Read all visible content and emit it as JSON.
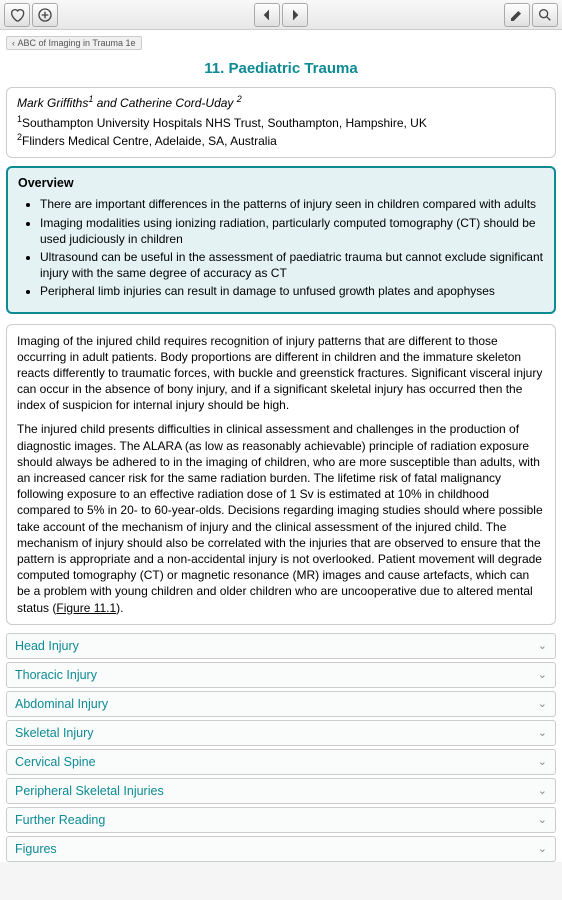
{
  "breadcrumb": {
    "back_label": "ABC of Imaging in Trauma 1e"
  },
  "title": "11. Paediatric Trauma",
  "authors_html": "Mark Griffiths",
  "authors_sup1": "1",
  "authors_and": " and Catherine Cord-Uday ",
  "authors_sup2": "2",
  "affil1_sup": "1",
  "affil1": "Southampton University Hospitals NHS Trust, Southampton, Hampshire, UK",
  "affil2_sup": "2",
  "affil2": "Flinders Medical Centre, Adelaide, SA, Australia",
  "overview": {
    "heading": "Overview",
    "items": [
      "There are important differences in the patterns of injury seen in children compared with adults",
      "Imaging modalities using ionizing radiation, particularly computed tomography (CT) should be used judiciously in children",
      "Ultrasound can be useful in the assessment of paediatric trauma but cannot exclude significant injury with the same degree of accuracy as CT",
      "Peripheral limb injuries can result in damage to unfused growth plates and apophyses"
    ]
  },
  "body": {
    "p1": "Imaging of the injured child requires recognition of injury patterns that are different to those occurring in adult patients. Body proportions are different in children and the immature skeleton reacts differently to traumatic forces, with buckle and greenstick fractures. Significant visceral injury can occur in the absence of bony injury, and if a significant skeletal injury has occurred then the index of suspicion for internal injury should be high.",
    "p2a": "The injured child presents difficulties in clinical assessment and challenges in the production of diagnostic images. The ALARA (as low as reasonably achievable) principle of radiation exposure should always be adhered to in the imaging of children, who are more susceptible than adults, with an increased cancer risk for the same radiation burden. The lifetime risk of fatal malignancy following exposure to an effective radiation dose of 1 Sv is estimated at 10% in childhood compared to 5% in 20- to 60-year-olds. Decisions regarding imaging studies should where possible take account of the mechanism of injury and the clinical assessment of the injured child. The mechanism of injury should also be correlated with the injuries that are observed to ensure that the pattern is appropriate and a non-accidental injury is not overlooked. Patient movement will degrade computed tomography (CT) or magnetic resonance (MR) images and cause artefacts, which can be a problem with young children and older children who are uncooperative due to altered mental status (",
    "fig_link": "Figure 11.1",
    "p2b": ")."
  },
  "sections": [
    "Head Injury",
    "Thoracic Injury",
    "Abdominal Injury",
    "Skeletal Injury",
    "Cervical Spine",
    "Peripheral Skeletal Injuries",
    "Further Reading",
    "Figures"
  ],
  "colors": {
    "accent": "#0d8a94",
    "overview_bg": "#e4f2f3"
  }
}
